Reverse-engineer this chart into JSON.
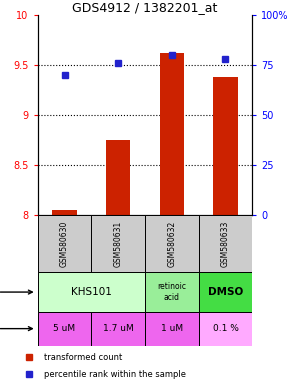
{
  "title": "GDS4912 / 1382201_at",
  "samples": [
    "GSM580630",
    "GSM580631",
    "GSM580632",
    "GSM580633"
  ],
  "red_values": [
    8.05,
    8.75,
    9.62,
    9.38
  ],
  "blue_values": [
    70,
    76,
    80,
    78
  ],
  "ylim_left": [
    8,
    10
  ],
  "ylim_right": [
    0,
    100
  ],
  "yticks_left": [
    8,
    8.5,
    9,
    9.5,
    10
  ],
  "yticks_right": [
    0,
    25,
    50,
    75,
    100
  ],
  "ytick_labels_right": [
    "0",
    "25",
    "50",
    "75",
    "100%"
  ],
  "dose_labels": [
    "5 uM",
    "1.7 uM",
    "1 uM",
    "0.1 %"
  ],
  "sample_bg": "#cccccc",
  "bar_color": "#cc2200",
  "dot_color": "#2222cc",
  "legend_red": "transformed count",
  "legend_blue": "percentile rank within the sample",
  "agent_light_green": "#ccffcc",
  "agent_mid_green": "#99ee99",
  "agent_bright_green": "#44dd44",
  "dose_pink": "#ee66ee",
  "dose_light_pink": "#ffaaff"
}
